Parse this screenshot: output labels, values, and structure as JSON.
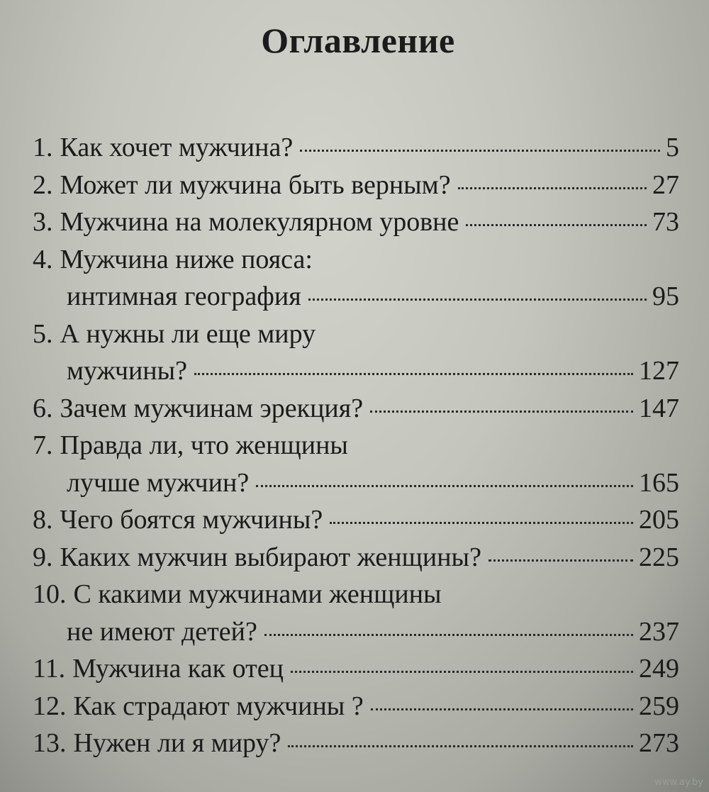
{
  "title": "Оглавление",
  "entries": [
    {
      "num": "1.",
      "lines": [
        "Как хочет мужчина?"
      ],
      "page": "5"
    },
    {
      "num": "2.",
      "lines": [
        "Может ли мужчина быть верным?"
      ],
      "page": "27"
    },
    {
      "num": "3.",
      "lines": [
        "Мужчина на молекулярном уровне"
      ],
      "page": "73"
    },
    {
      "num": "4.",
      "lines": [
        "Мужчина ниже пояса:",
        "интимная география"
      ],
      "page": "95"
    },
    {
      "num": "5.",
      "lines": [
        "А нужны ли еще миру",
        "мужчины?"
      ],
      "page": "127"
    },
    {
      "num": "6.",
      "lines": [
        "Зачем мужчинам эрекция?"
      ],
      "page": "147"
    },
    {
      "num": "7.",
      "lines": [
        "Правда ли, что женщины",
        "лучше мужчин?"
      ],
      "page": "165"
    },
    {
      "num": "8.",
      "lines": [
        "Чего боятся мужчины?"
      ],
      "page": "205"
    },
    {
      "num": "9.",
      "lines": [
        "Каких мужчин выбирают женщины?"
      ],
      "page": "225"
    },
    {
      "num": "10.",
      "lines": [
        "С какими мужчинами женщины",
        "не имеют детей?"
      ],
      "page": "237"
    },
    {
      "num": "11.",
      "lines": [
        "Мужчина как отец"
      ],
      "page": "249"
    },
    {
      "num": "12.",
      "lines": [
        "Как  страдают мужчины ?"
      ],
      "page": "259"
    },
    {
      "num": "13.",
      "lines": [
        "Нужен ли я миру?"
      ],
      "page": "273"
    }
  ],
  "watermark": "www.ay.by"
}
